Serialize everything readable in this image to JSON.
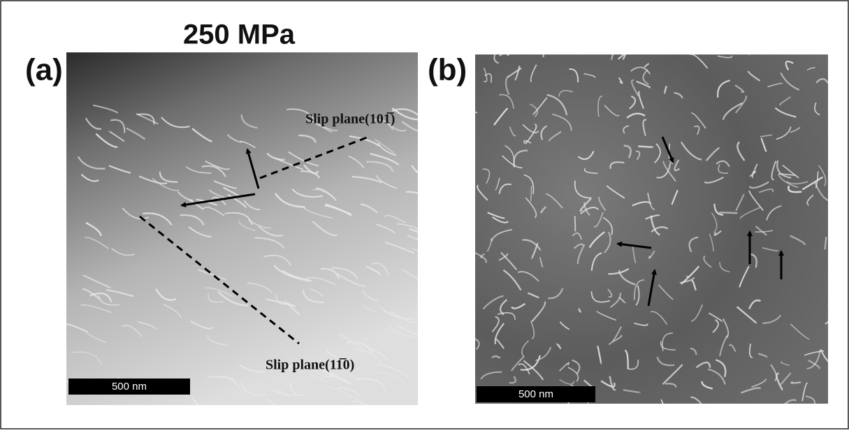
{
  "figure": {
    "title": "250 MPa",
    "panels": [
      {
        "label": "(a)",
        "annotations": [
          "Slip plane(101̅)",
          "Slip plane(11̅0)"
        ],
        "scale_bar": "500 nm"
      },
      {
        "label": "(b)",
        "scale_bar": "500 nm"
      }
    ]
  }
}
